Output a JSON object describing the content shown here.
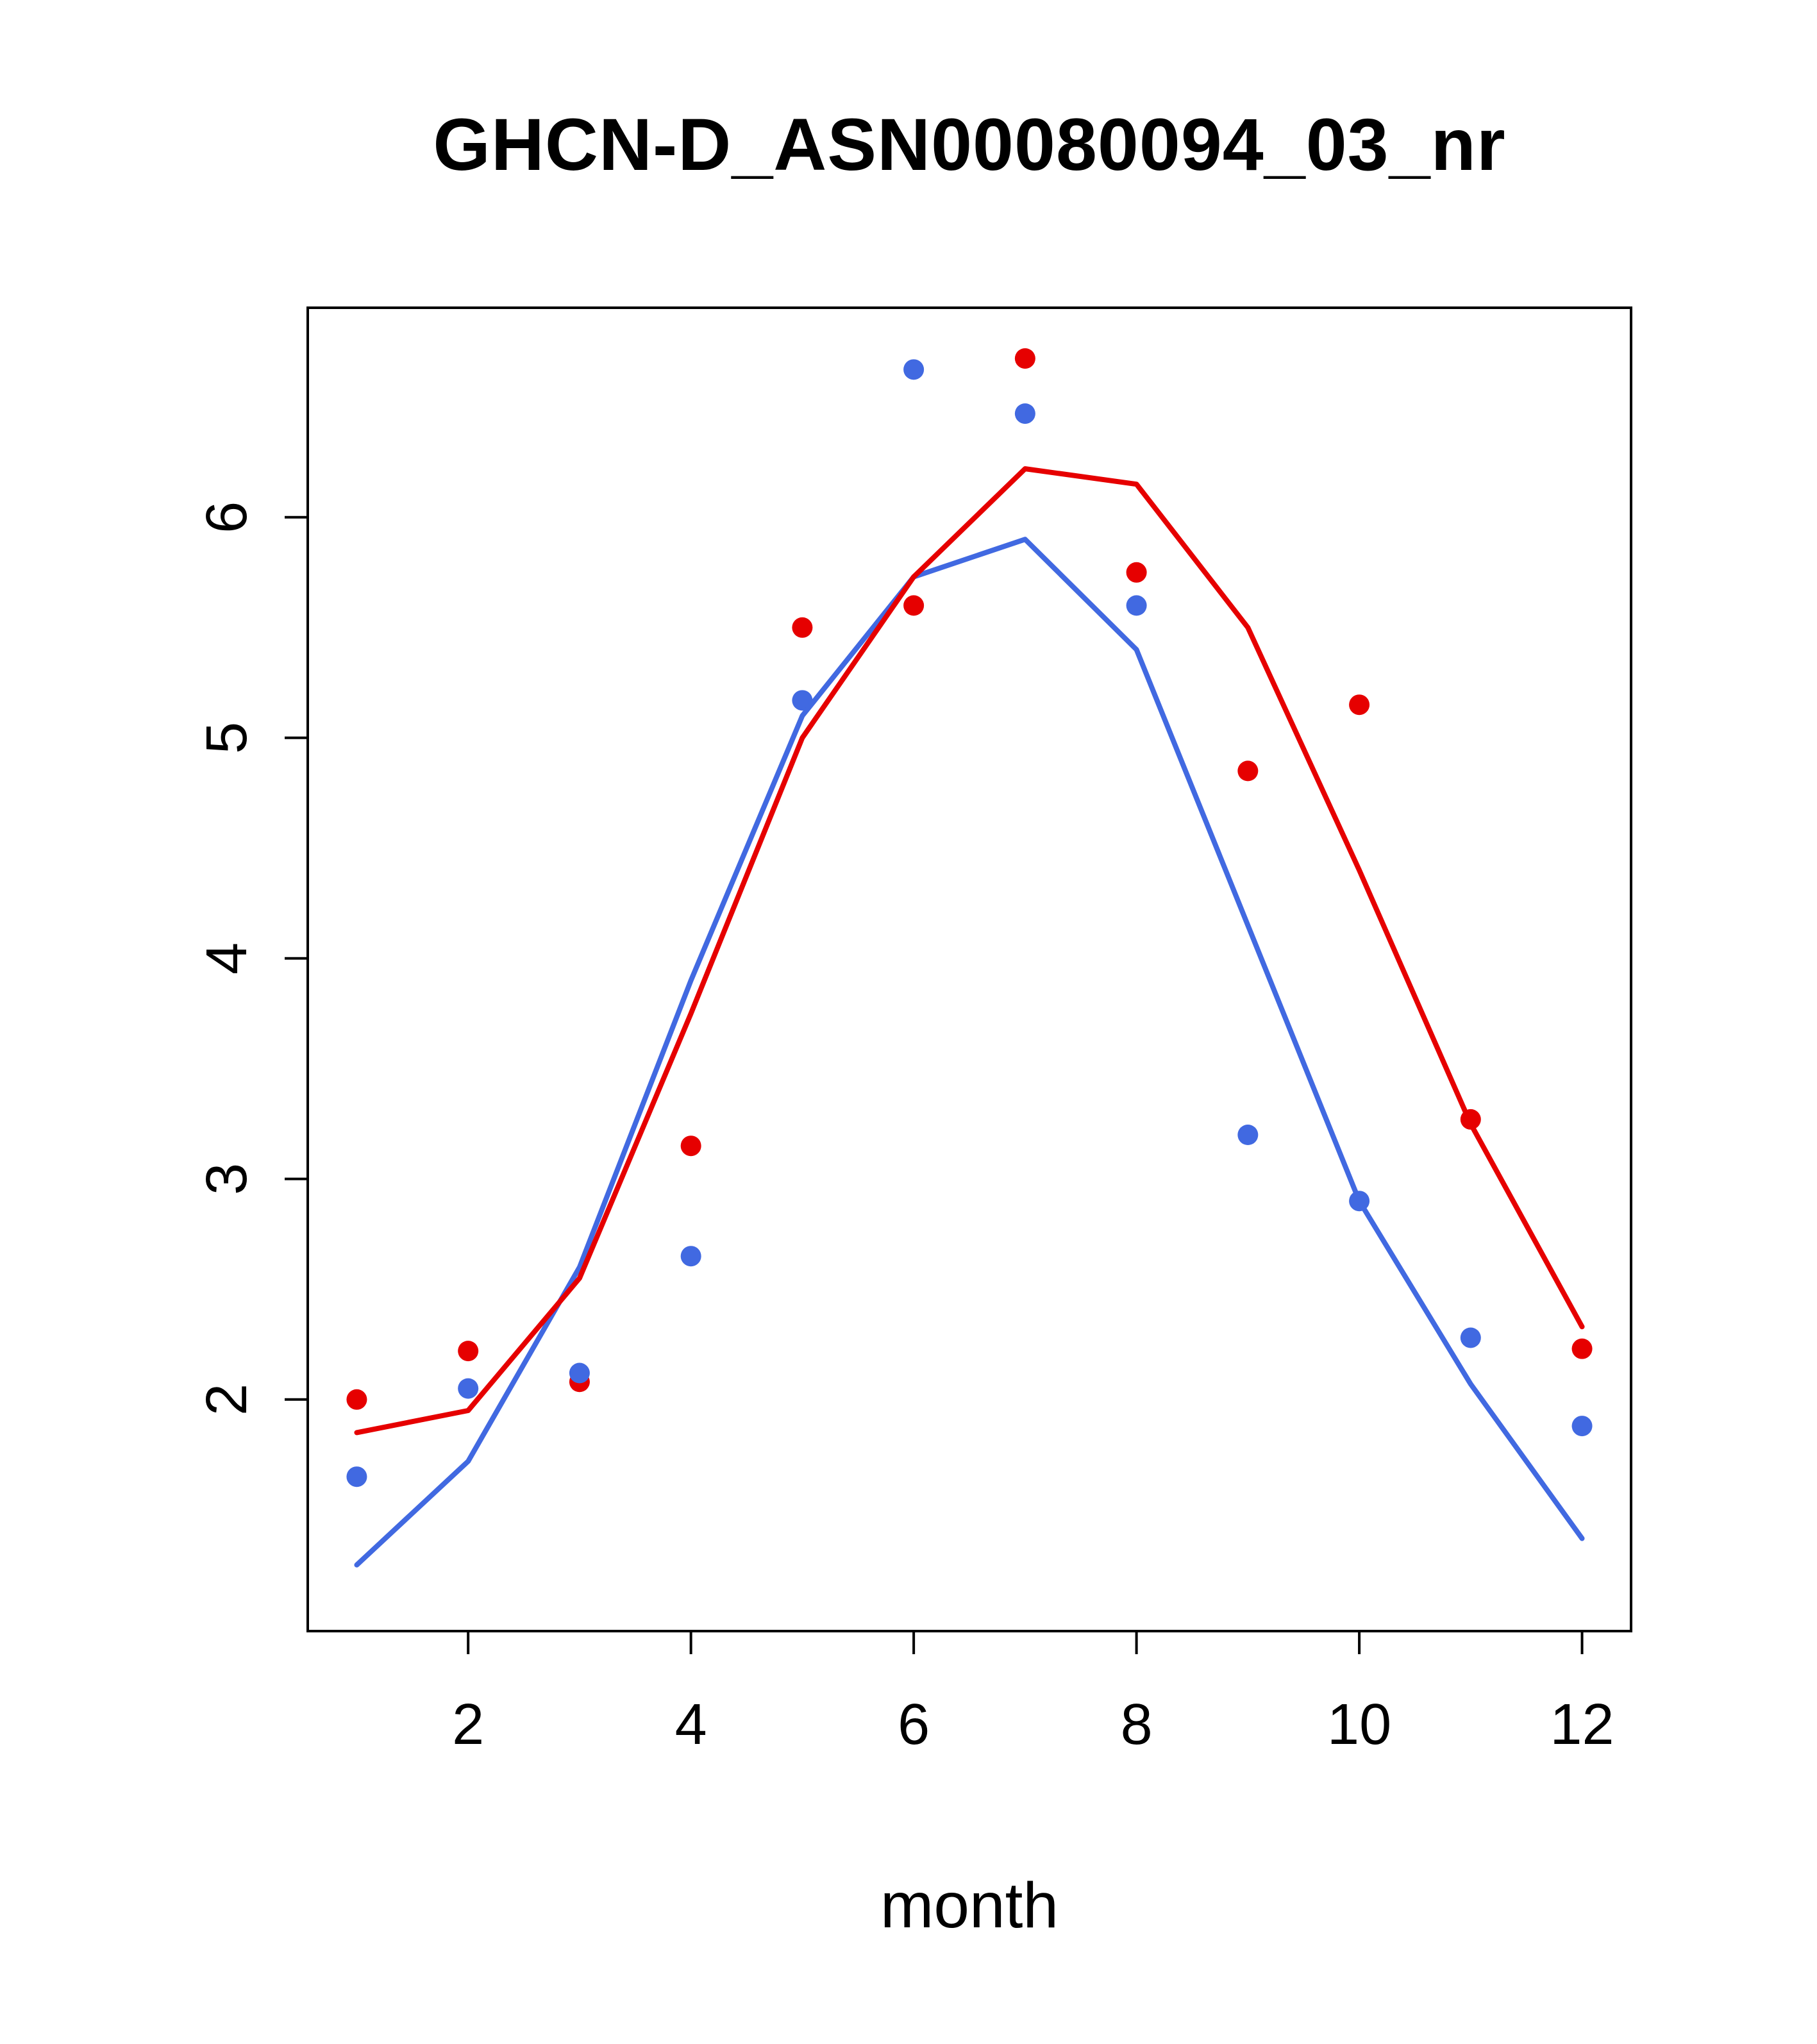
{
  "chart_data": {
    "type": "line+scatter",
    "title": "GHCN-D_ASN00080094_03_nr",
    "xlabel": "month",
    "ylabel": "",
    "x": [
      1,
      2,
      3,
      4,
      5,
      6,
      7,
      8,
      9,
      10,
      11,
      12
    ],
    "xticks": [
      2,
      4,
      6,
      8,
      10,
      12
    ],
    "yticks": [
      2,
      3,
      4,
      5,
      6
    ],
    "xlim": [
      0.56,
      12.44
    ],
    "ylim": [
      0.95,
      6.95
    ],
    "grid": false,
    "legend": "none",
    "colors": {
      "red": "#e60000",
      "blue": "#4169e1"
    },
    "series": [
      {
        "name": "red-points",
        "kind": "points",
        "color": "#e60000",
        "values": [
          2.0,
          2.22,
          2.08,
          3.15,
          5.5,
          5.6,
          6.72,
          5.75,
          4.85,
          5.15,
          3.27,
          2.23
        ]
      },
      {
        "name": "blue-points",
        "kind": "points",
        "color": "#4169e1",
        "values": [
          1.65,
          2.05,
          2.12,
          2.65,
          5.17,
          6.67,
          6.47,
          5.6,
          3.2,
          2.9,
          2.28,
          1.88
        ]
      },
      {
        "name": "blue-line",
        "kind": "line",
        "color": "#4169e1",
        "values": [
          1.25,
          1.72,
          2.6,
          3.9,
          5.1,
          5.73,
          5.9,
          5.4,
          4.15,
          2.9,
          2.07,
          1.37
        ]
      },
      {
        "name": "red-line",
        "kind": "line",
        "color": "#e60000",
        "values": [
          1.85,
          1.95,
          2.55,
          3.75,
          5.0,
          5.73,
          6.22,
          6.15,
          5.5,
          4.4,
          3.25,
          2.33
        ]
      }
    ]
  },
  "layout_text": {
    "note": ""
  }
}
